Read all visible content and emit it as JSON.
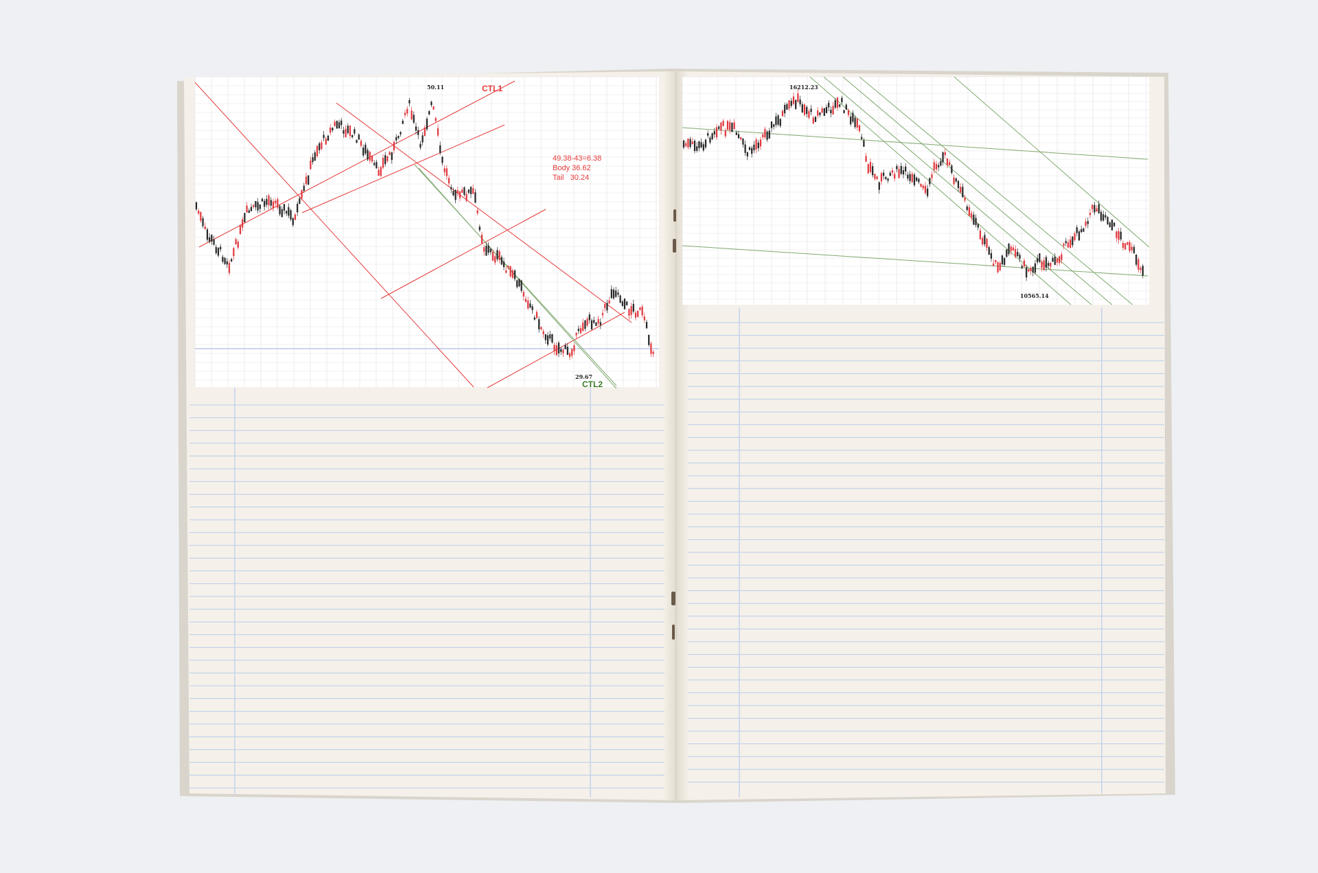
{
  "colors": {
    "background": "#eef0f3",
    "paper": "#f5f1ea",
    "ruled_line": "#b9cbea",
    "margin_line": "#c4d3ee",
    "chart_bg": "#ffffff",
    "chart_grid": "#e2e2e2",
    "up_candle": "#e0343a",
    "down_candle": "#222222",
    "red_line": "#e53a3a",
    "green_line": "#7fa86e",
    "blue_line": "#9aa8de"
  },
  "left_chart": {
    "labels": {
      "peak": "50.11",
      "ctl1": "CTL1",
      "trough": "29.67",
      "ctl2": "CTL2",
      "note_line1": "49.38-43=6.38",
      "note_line2": "Body 36.62",
      "note_line3": "Tail   30.24"
    }
  },
  "right_chart": {
    "labels": {
      "peak": "16212.23",
      "trough": "10565.14"
    }
  }
}
